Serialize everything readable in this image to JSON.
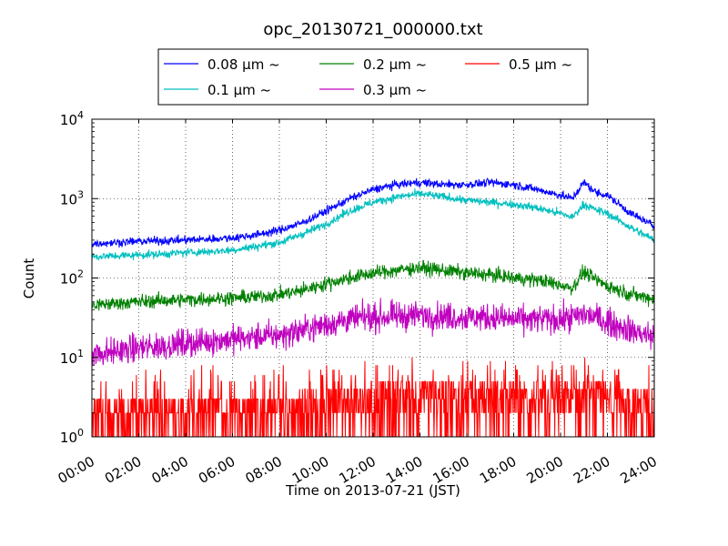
{
  "chart_data": {
    "type": "line",
    "title": "opc_20130721_000000.txt",
    "xlabel": "Time on 2013-07-21 (JST)",
    "ylabel": "Count",
    "xlim": [
      "2013-07-21 00:00",
      "2013-07-22 00:00"
    ],
    "ylim": [
      1,
      10000
    ],
    "yscale": "log",
    "grid": true,
    "legend_placement": "top-center, above plot",
    "x_tick_labels": [
      "00:00",
      "02:00",
      "04:00",
      "06:00",
      "08:00",
      "10:00",
      "12:00",
      "14:00",
      "16:00",
      "18:00",
      "20:00",
      "22:00",
      "24:00"
    ],
    "y_tick_labels": [
      {
        "base": "10",
        "exp": "0"
      },
      {
        "base": "10",
        "exp": "1"
      },
      {
        "base": "10",
        "exp": "2"
      },
      {
        "base": "10",
        "exp": "3"
      },
      {
        "base": "10",
        "exp": "4"
      }
    ],
    "x": [
      "00:00",
      "01:00",
      "02:00",
      "03:00",
      "04:00",
      "05:00",
      "06:00",
      "07:00",
      "08:00",
      "09:00",
      "10:00",
      "11:00",
      "12:00",
      "13:00",
      "14:00",
      "15:00",
      "16:00",
      "17:00",
      "18:00",
      "19:00",
      "20:00",
      "20:30",
      "21:00",
      "21:30",
      "22:00",
      "23:00",
      "24:00"
    ],
    "series": [
      {
        "name": "0.08 μm ~",
        "color": "#0000ff",
        "values": [
          270,
          280,
          290,
          295,
          300,
          310,
          320,
          350,
          400,
          500,
          700,
          1000,
          1300,
          1500,
          1600,
          1500,
          1500,
          1600,
          1500,
          1300,
          1100,
          1000,
          1600,
          1200,
          1100,
          650,
          450
        ]
      },
      {
        "name": "0.1 μm ~",
        "color": "#00bfbf",
        "values": [
          185,
          190,
          195,
          200,
          210,
          215,
          225,
          250,
          280,
          360,
          480,
          700,
          900,
          1050,
          1150,
          1050,
          950,
          900,
          850,
          760,
          650,
          580,
          850,
          720,
          650,
          430,
          300
        ]
      },
      {
        "name": "0.2 μm ~",
        "color": "#008000",
        "values": [
          45,
          48,
          50,
          52,
          53,
          55,
          56,
          58,
          62,
          70,
          85,
          100,
          115,
          125,
          135,
          125,
          115,
          110,
          100,
          95,
          82,
          75,
          120,
          95,
          80,
          62,
          55
        ]
      },
      {
        "name": "0.3 μm ~",
        "color": "#bf00bf",
        "values": [
          11,
          12,
          13,
          14,
          15,
          16,
          17,
          18,
          19,
          22,
          26,
          30,
          32,
          33,
          34,
          33,
          32,
          32,
          30,
          30,
          30,
          32,
          35,
          32,
          28,
          22,
          18
        ]
      },
      {
        "name": "0.5 μm ~",
        "color": "#ff0000",
        "values": [
          1.8,
          1.8,
          1.8,
          1.9,
          1.9,
          1.9,
          2.0,
          2.0,
          2.0,
          2.1,
          2.3,
          2.6,
          2.8,
          2.9,
          3.0,
          3.0,
          2.9,
          2.8,
          2.8,
          2.7,
          2.7,
          2.7,
          2.9,
          2.8,
          2.7,
          2.5,
          2.3
        ]
      }
    ]
  }
}
